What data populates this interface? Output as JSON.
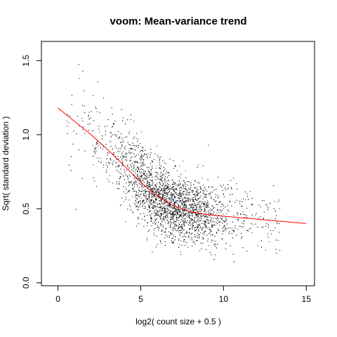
{
  "chart_data": {
    "type": "scatter",
    "title": "voom: Mean-variance trend",
    "xlabel": "log2( count size + 0.5 )",
    "ylabel": "Sqrt( standard deviation )",
    "xlim": [
      -1.0,
      15.5
    ],
    "ylim": [
      -0.02,
      1.63
    ],
    "x_ticks": [
      0,
      5,
      10,
      15
    ],
    "y_ticks": [
      0.0,
      0.5,
      1.0,
      1.5
    ],
    "x_tick_labels": [
      "0",
      "5",
      "10",
      "15"
    ],
    "y_tick_labels": [
      "0.0",
      "0.5",
      "1.0",
      "1.5"
    ],
    "grid": false,
    "legend": "none",
    "colors": {
      "points": "#000000",
      "trend": "#ff0000",
      "axis": "#000000"
    },
    "point_cloud": {
      "approx_points": 4500,
      "center_x": 6.8,
      "center_y": 0.52,
      "x_range": [
        0.0,
        15.0
      ],
      "y_range": [
        0.05,
        1.57
      ]
    },
    "trend_line": {
      "x": [
        0.0,
        1.0,
        2.0,
        3.0,
        4.0,
        5.0,
        5.5,
        6.0,
        6.5,
        7.0,
        7.5,
        8.0,
        9.0,
        10.0,
        11.0,
        12.0,
        13.0,
        14.0,
        15.0
      ],
      "y": [
        1.18,
        1.09,
        1.0,
        0.9,
        0.79,
        0.68,
        0.63,
        0.59,
        0.55,
        0.52,
        0.5,
        0.48,
        0.46,
        0.45,
        0.44,
        0.43,
        0.42,
        0.41,
        0.4
      ]
    }
  }
}
